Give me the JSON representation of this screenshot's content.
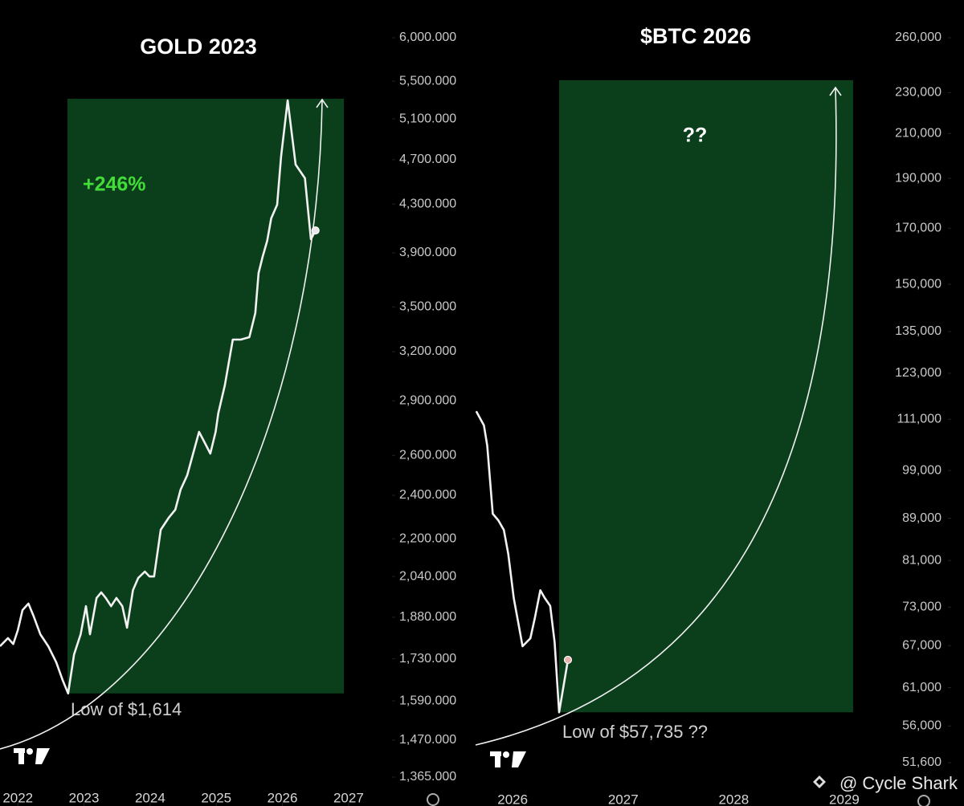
{
  "chart_data": [
    {
      "type": "line",
      "title": "GOLD 2023",
      "log_y": true,
      "x": [
        2021.73,
        2021.85,
        2021.93,
        2022.0,
        2022.07,
        2022.16,
        2022.24,
        2022.34,
        2022.46,
        2022.58,
        2022.68,
        2022.76,
        2022.85,
        2022.95,
        2023.03,
        2023.09,
        2023.19,
        2023.26,
        2023.33,
        2023.41,
        2023.49,
        2023.58,
        2023.65,
        2023.74,
        2023.82,
        2023.92,
        2023.99,
        2024.06,
        2024.16,
        2024.28,
        2024.38,
        2024.46,
        2024.56,
        2024.65,
        2024.74,
        2024.83,
        2024.91,
        2024.99,
        2025.03,
        2025.13,
        2025.25,
        2025.37,
        2025.5,
        2025.59,
        2025.64,
        2025.7,
        2025.77,
        2025.83,
        2025.92,
        2025.98,
        2026.08,
        2026.2,
        2026.34,
        2026.43,
        2026.5
      ],
      "series": [
        {
          "name": "Gold",
          "color": "#f2f2f2",
          "values": [
            1774,
            1803,
            1782,
            1832,
            1907,
            1932,
            1883,
            1817,
            1774,
            1718,
            1656,
            1614,
            1745,
            1817,
            1922,
            1817,
            1954,
            1976,
            1954,
            1922,
            1954,
            1922,
            1841,
            1985,
            2034,
            2060,
            2040,
            2040,
            2240,
            2294,
            2332,
            2427,
            2498,
            2609,
            2725,
            2664,
            2609,
            2725,
            2828,
            2992,
            3278,
            3278,
            3294,
            3457,
            3746,
            3869,
            3995,
            4179,
            4295,
            4730,
            5293,
            4654,
            4529,
            4008,
            4079
          ]
        }
      ],
      "xlim": [
        2021.73,
        2027.56
      ],
      "xticks": [
        2022,
        2023,
        2024,
        2025,
        2026,
        2027
      ],
      "ylim": [
        1365,
        6000
      ],
      "yticks": [
        {
          "value": 6000,
          "label": "6,000.000"
        },
        {
          "value": 5500,
          "label": "5,500.000"
        },
        {
          "value": 5100,
          "label": "5,100.000"
        },
        {
          "value": 4700,
          "label": "4,700.000"
        },
        {
          "value": 4300,
          "label": "4,300.000"
        },
        {
          "value": 3900,
          "label": "3,900.000"
        },
        {
          "value": 3500,
          "label": "3,500.000"
        },
        {
          "value": 3200,
          "label": "3,200.000"
        },
        {
          "value": 2900,
          "label": "2,900.000"
        },
        {
          "value": 2600,
          "label": "2,600.000"
        },
        {
          "value": 2400,
          "label": "2,400.000"
        },
        {
          "value": 2200,
          "label": "2,200.000"
        },
        {
          "value": 2040,
          "label": "2,040.000"
        },
        {
          "value": 1880,
          "label": "1,880.000"
        },
        {
          "value": 1730,
          "label": "1,730.000"
        },
        {
          "value": 1590,
          "label": "1,590.000"
        },
        {
          "value": 1470,
          "label": "1,470.000"
        },
        {
          "value": 1365,
          "label": "1,365.000"
        }
      ],
      "shaded_region": {
        "x": [
          2022.75,
          2026.93
        ],
        "y": [
          1614,
          5310
        ],
        "color": "#0b3f1c"
      },
      "annotations": [
        {
          "text": "+246%",
          "color": "#43dd3a"
        },
        {
          "text": "Low of $1,614",
          "color": "#d0d0d0"
        }
      ]
    },
    {
      "type": "line",
      "title": "$BTC 2026",
      "log_y": true,
      "x": [
        2025.67,
        2025.74,
        2025.77,
        2025.82,
        2025.87,
        2025.92,
        2025.96,
        2026.01,
        2026.09,
        2026.16,
        2026.2,
        2026.25,
        2026.29,
        2026.34,
        2026.38,
        2026.42,
        2026.5
      ],
      "series": [
        {
          "name": "BTC",
          "color": "#f2f2f2",
          "values": [
            113000,
            109500,
            104700,
            89900,
            88600,
            86700,
            82200,
            74500,
            66900,
            68100,
            71200,
            75800,
            74500,
            73200,
            67500,
            57735,
            64900
          ]
        }
      ],
      "xlim": [
        2025.65,
        2029.32
      ],
      "xticks": [
        2026,
        2027,
        2028,
        2029
      ],
      "ylim": [
        51600,
        260000
      ],
      "yticks": [
        {
          "value": 260000,
          "label": "260,000"
        },
        {
          "value": 230000,
          "label": "230,000"
        },
        {
          "value": 210000,
          "label": "210,000"
        },
        {
          "value": 190000,
          "label": "190,000"
        },
        {
          "value": 170000,
          "label": "170,000"
        },
        {
          "value": 150000,
          "label": "150,000"
        },
        {
          "value": 135000,
          "label": "135,000"
        },
        {
          "value": 123000,
          "label": "123,000"
        },
        {
          "value": 111000,
          "label": "111,000"
        },
        {
          "value": 99000,
          "label": "99,000"
        },
        {
          "value": 89000,
          "label": "89,000"
        },
        {
          "value": 81000,
          "label": "81,000"
        },
        {
          "value": 73000,
          "label": "73,000"
        },
        {
          "value": 67000,
          "label": "67,000"
        },
        {
          "value": 61000,
          "label": "61,000"
        },
        {
          "value": 56000,
          "label": "56,000"
        },
        {
          "value": 51600,
          "label": "51,600"
        }
      ],
      "shaded_region": {
        "x": [
          2026.42,
          2029.08
        ],
        "y": [
          57735,
          236500
        ],
        "color": "#0b3f1c"
      },
      "annotations": [
        {
          "text": "??",
          "color": "#ffffff"
        },
        {
          "text": "Low of $57,735 ??",
          "color": "#d0d0d0"
        }
      ]
    }
  ],
  "watermark": "@ Cycle Shark"
}
